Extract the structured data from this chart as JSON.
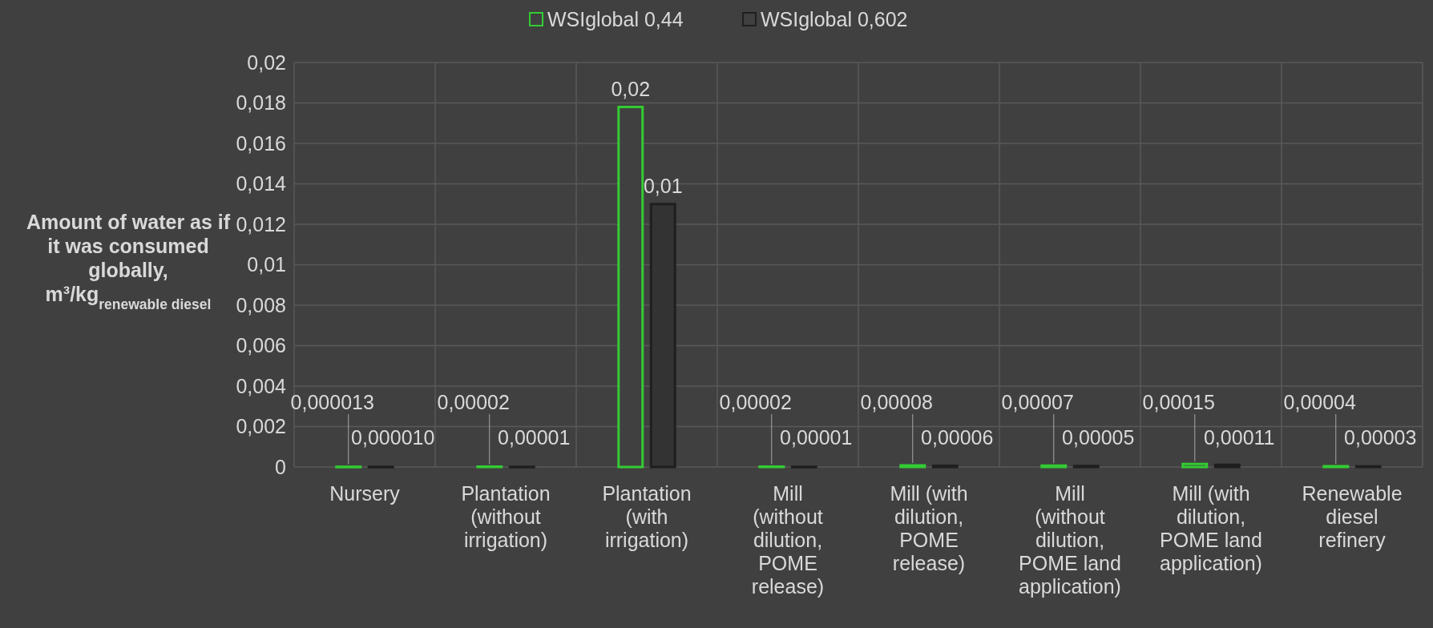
{
  "chart_data": {
    "type": "bar",
    "ylabel": "Amount of water as if it was consumed globally, m³/kg$_{renewable diesel}$",
    "categories": [
      "Nursery",
      "Plantation (without irrigation)",
      "Plantation (with irrigation)",
      "Mill (without dilution, POME release)",
      "Mill (with dilution, POME release)",
      "Mill (without dilution, POME land application)",
      "Mill (with dilution, POME land application)",
      "Renewable diesel refinery"
    ],
    "series": [
      {
        "name": "WSIglobal 0,44",
        "color": "#33cc33",
        "values": [
          1.3e-05,
          2e-05,
          0.0178,
          2e-05,
          8e-05,
          7e-05,
          0.00015,
          4e-05
        ],
        "value_labels": [
          "0,000013",
          "0,00002",
          "0,02",
          "0,00002",
          "0,00008",
          "0,00007",
          "0,00015",
          "0,00004"
        ]
      },
      {
        "name": "WSIglobal 0,602",
        "color": "#1f1f1f",
        "values": [
          1e-05,
          1e-05,
          0.013,
          1e-05,
          6e-05,
          5e-05,
          0.00011,
          3e-05
        ],
        "value_labels": [
          "0,000010",
          "0,00001",
          "0,01",
          "0,00001",
          "0,00006",
          "0,00005",
          "0,00011",
          "0,00003"
        ]
      }
    ],
    "ylim": [
      0,
      0.02
    ],
    "yticks": [
      0,
      {
        "value": 0.002,
        "label": "0,002"
      },
      {
        "value": 0.004,
        "label": "0,004"
      },
      {
        "value": 0.006,
        "label": "0,006"
      },
      {
        "value": 0.008,
        "label": "0,008"
      },
      {
        "value": 0.01,
        "label": "0,01"
      },
      {
        "value": 0.012,
        "label": "0,012"
      },
      {
        "value": 0.014,
        "label": "0,014"
      },
      {
        "value": 0.016,
        "label": "0,016"
      },
      {
        "value": 0.018,
        "label": "0,018"
      },
      {
        "value": 0.02,
        "label": "0,02"
      }
    ],
    "grid": true,
    "legend": "top"
  }
}
